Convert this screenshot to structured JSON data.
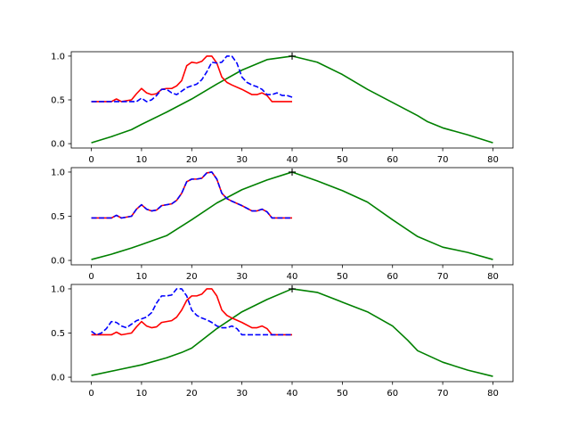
{
  "chart_data": [
    {
      "type": "line",
      "title": "",
      "xlabel": "",
      "ylabel": "",
      "xlim": [
        -4,
        84
      ],
      "ylim": [
        -0.05,
        1.05
      ],
      "xticks": [
        0,
        10,
        20,
        30,
        40,
        50,
        60,
        70,
        80
      ],
      "yticks": [
        0.0,
        0.5,
        1.0
      ],
      "ytick_labels": [
        "0.0",
        "0.5",
        "1.0"
      ],
      "grid": false,
      "series": [
        {
          "color": "#008000",
          "style": "solid",
          "x": [
            0,
            4,
            8,
            10,
            15,
            20,
            25,
            30,
            35,
            40,
            45,
            50,
            55,
            60,
            65,
            67,
            70,
            75,
            80
          ],
          "y": [
            0.01,
            0.08,
            0.16,
            0.22,
            0.36,
            0.51,
            0.68,
            0.84,
            0.96,
            1.0,
            0.93,
            0.79,
            0.62,
            0.47,
            0.32,
            0.25,
            0.18,
            0.1,
            0.01
          ]
        },
        {
          "color": "#ff0000",
          "style": "solid",
          "x": [
            0,
            4,
            5,
            6,
            8,
            9,
            10,
            11,
            12,
            13,
            14,
            15,
            16,
            17,
            18,
            19,
            20,
            21,
            22,
            23,
            24,
            25,
            26,
            27,
            28,
            30,
            32,
            33,
            34,
            35,
            36,
            38,
            40
          ],
          "y": [
            0.48,
            0.48,
            0.51,
            0.48,
            0.5,
            0.57,
            0.63,
            0.58,
            0.56,
            0.57,
            0.62,
            0.63,
            0.63,
            0.66,
            0.72,
            0.89,
            0.93,
            0.92,
            0.94,
            1.0,
            1.0,
            0.92,
            0.76,
            0.7,
            0.67,
            0.62,
            0.56,
            0.56,
            0.58,
            0.55,
            0.48,
            0.48,
            0.48
          ]
        },
        {
          "color": "#0000ff",
          "style": "dashed",
          "x": [
            0,
            9,
            10,
            11,
            12,
            13,
            14,
            15,
            16,
            17,
            18,
            19,
            20,
            21,
            22,
            23,
            24,
            25,
            26,
            27,
            28,
            29,
            30,
            31,
            32,
            33,
            34,
            35,
            36,
            37,
            38,
            39,
            40
          ],
          "y": [
            0.48,
            0.48,
            0.52,
            0.48,
            0.5,
            0.55,
            0.62,
            0.62,
            0.58,
            0.56,
            0.6,
            0.64,
            0.66,
            0.68,
            0.73,
            0.82,
            0.93,
            0.92,
            0.93,
            1.0,
            1.0,
            0.92,
            0.76,
            0.7,
            0.67,
            0.65,
            0.62,
            0.56,
            0.56,
            0.58,
            0.55,
            0.55,
            0.53
          ]
        }
      ],
      "marker": {
        "x": 40,
        "y": 1.0,
        "symbol": "+",
        "color": "#000000"
      }
    },
    {
      "type": "line",
      "title": "",
      "xlabel": "",
      "ylabel": "",
      "xlim": [
        -4,
        84
      ],
      "ylim": [
        -0.05,
        1.05
      ],
      "xticks": [
        0,
        10,
        20,
        30,
        40,
        50,
        60,
        70,
        80
      ],
      "yticks": [
        0.0,
        0.5,
        1.0
      ],
      "ytick_labels": [
        "0.0",
        "0.5",
        "1.0"
      ],
      "grid": false,
      "series": [
        {
          "color": "#008000",
          "style": "solid",
          "x": [
            0,
            4,
            8,
            10,
            15,
            20,
            25,
            30,
            35,
            40,
            45,
            50,
            55,
            60,
            65,
            70,
            75,
            80
          ],
          "y": [
            0.01,
            0.07,
            0.14,
            0.18,
            0.28,
            0.46,
            0.65,
            0.8,
            0.91,
            1.0,
            0.9,
            0.79,
            0.66,
            0.46,
            0.27,
            0.15,
            0.09,
            0.01
          ]
        },
        {
          "color": "#ff0000",
          "style": "solid",
          "x": [
            0,
            4,
            5,
            6,
            8,
            9,
            10,
            11,
            12,
            13,
            14,
            15,
            16,
            17,
            18,
            19,
            20,
            21,
            22,
            23,
            24,
            25,
            26,
            27,
            28,
            30,
            32,
            33,
            34,
            35,
            36,
            38,
            40
          ],
          "y": [
            0.48,
            0.48,
            0.51,
            0.48,
            0.5,
            0.58,
            0.63,
            0.58,
            0.56,
            0.57,
            0.62,
            0.63,
            0.64,
            0.68,
            0.76,
            0.89,
            0.92,
            0.92,
            0.93,
            0.99,
            1.0,
            0.92,
            0.76,
            0.7,
            0.67,
            0.62,
            0.56,
            0.56,
            0.58,
            0.55,
            0.48,
            0.48,
            0.48
          ]
        },
        {
          "color": "#0000ff",
          "style": "dashed",
          "x": [
            0,
            4,
            5,
            6,
            8,
            9,
            10,
            11,
            12,
            13,
            14,
            15,
            16,
            17,
            18,
            19,
            20,
            21,
            22,
            23,
            24,
            25,
            26,
            27,
            28,
            30,
            32,
            33,
            34,
            35,
            36,
            38,
            40
          ],
          "y": [
            0.48,
            0.48,
            0.51,
            0.48,
            0.5,
            0.58,
            0.63,
            0.58,
            0.56,
            0.57,
            0.62,
            0.63,
            0.64,
            0.68,
            0.76,
            0.89,
            0.92,
            0.92,
            0.93,
            0.99,
            1.0,
            0.92,
            0.76,
            0.7,
            0.67,
            0.62,
            0.56,
            0.56,
            0.58,
            0.55,
            0.48,
            0.48,
            0.48
          ]
        }
      ],
      "marker": {
        "x": 40,
        "y": 1.0,
        "symbol": "+",
        "color": "#000000"
      }
    },
    {
      "type": "line",
      "title": "",
      "xlabel": "",
      "ylabel": "",
      "xlim": [
        -4,
        84
      ],
      "ylim": [
        -0.05,
        1.05
      ],
      "xticks": [
        0,
        10,
        20,
        30,
        40,
        50,
        60,
        70,
        80
      ],
      "yticks": [
        0.0,
        0.5,
        1.0
      ],
      "ytick_labels": [
        "0.0",
        "0.5",
        "1.0"
      ],
      "grid": false,
      "series": [
        {
          "color": "#008000",
          "style": "solid",
          "x": [
            0,
            5,
            10,
            15,
            18,
            20,
            25,
            30,
            35,
            40,
            45,
            50,
            55,
            60,
            63,
            65,
            70,
            75,
            80
          ],
          "y": [
            0.02,
            0.08,
            0.14,
            0.22,
            0.28,
            0.33,
            0.55,
            0.74,
            0.88,
            1.0,
            0.96,
            0.85,
            0.74,
            0.58,
            0.42,
            0.3,
            0.17,
            0.08,
            0.01
          ]
        },
        {
          "color": "#ff0000",
          "style": "solid",
          "x": [
            0,
            4,
            5,
            6,
            8,
            9,
            10,
            11,
            12,
            13,
            14,
            15,
            16,
            17,
            18,
            19,
            20,
            21,
            22,
            23,
            24,
            25,
            26,
            27,
            28,
            30,
            32,
            33,
            34,
            35,
            36,
            38,
            40
          ],
          "y": [
            0.48,
            0.48,
            0.51,
            0.48,
            0.5,
            0.57,
            0.63,
            0.58,
            0.56,
            0.57,
            0.62,
            0.63,
            0.64,
            0.68,
            0.76,
            0.87,
            0.92,
            0.92,
            0.94,
            1.0,
            1.0,
            0.92,
            0.76,
            0.7,
            0.67,
            0.62,
            0.56,
            0.56,
            0.58,
            0.55,
            0.48,
            0.48,
            0.48
          ]
        },
        {
          "color": "#0000ff",
          "style": "dashed",
          "x": [
            0,
            1,
            2,
            3,
            4,
            5,
            6,
            7,
            8,
            9,
            10,
            11,
            12,
            13,
            14,
            15,
            16,
            17,
            18,
            19,
            20,
            21,
            22,
            23,
            24,
            25,
            26,
            27,
            28,
            29,
            30,
            31,
            32,
            35,
            40
          ],
          "y": [
            0.52,
            0.48,
            0.5,
            0.55,
            0.63,
            0.62,
            0.58,
            0.56,
            0.6,
            0.64,
            0.66,
            0.68,
            0.73,
            0.84,
            0.92,
            0.92,
            0.93,
            1.0,
            1.0,
            0.92,
            0.76,
            0.7,
            0.67,
            0.65,
            0.62,
            0.58,
            0.56,
            0.56,
            0.58,
            0.55,
            0.48,
            0.48,
            0.48,
            0.48,
            0.48
          ]
        }
      ],
      "marker": {
        "x": 40,
        "y": 1.0,
        "symbol": "+",
        "color": "#000000"
      }
    }
  ]
}
